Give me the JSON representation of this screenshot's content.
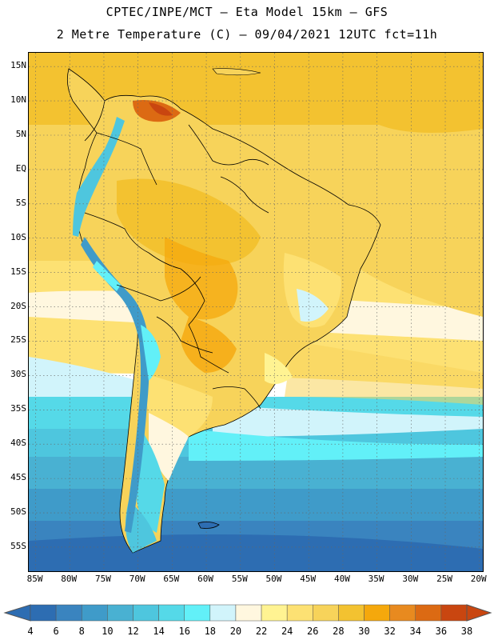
{
  "header": {
    "line1": "CPTEC/INPE/MCT –  Eta Model 15km – GFS",
    "line2": "2 Metre Temperature (C) – 09/04/2021 12UTC fct=11h"
  },
  "map": {
    "lon_range": [
      -86,
      -19.5
    ],
    "lat_range": [
      17,
      -58.5
    ],
    "lat_ticks": [
      "15N",
      "10N",
      "5N",
      "EQ",
      "5S",
      "10S",
      "15S",
      "20S",
      "25S",
      "30S",
      "35S",
      "40S",
      "45S",
      "50S",
      "55S"
    ],
    "lon_ticks": [
      "85W",
      "80W",
      "75W",
      "70W",
      "65W",
      "60W",
      "55W",
      "50W",
      "45W",
      "40W",
      "35W",
      "30W",
      "25W",
      "20W"
    ]
  },
  "colorbar": {
    "labels": [
      "4",
      "6",
      "8",
      "10",
      "12",
      "14",
      "16",
      "18",
      "20",
      "22",
      "24",
      "26",
      "28",
      "30",
      "32",
      "34",
      "36",
      "38"
    ],
    "colors": [
      "#2d6db2",
      "#3a84bf",
      "#3f9bc9",
      "#49b1d2",
      "#4ec6de",
      "#55d9e8",
      "#62f0f8",
      "#d1f4fb",
      "#fff7df",
      "#fff392",
      "#fde173",
      "#f7d35a",
      "#f3c230",
      "#f5a80c",
      "#e88a1f",
      "#dc6a13",
      "#c94610"
    ]
  }
}
